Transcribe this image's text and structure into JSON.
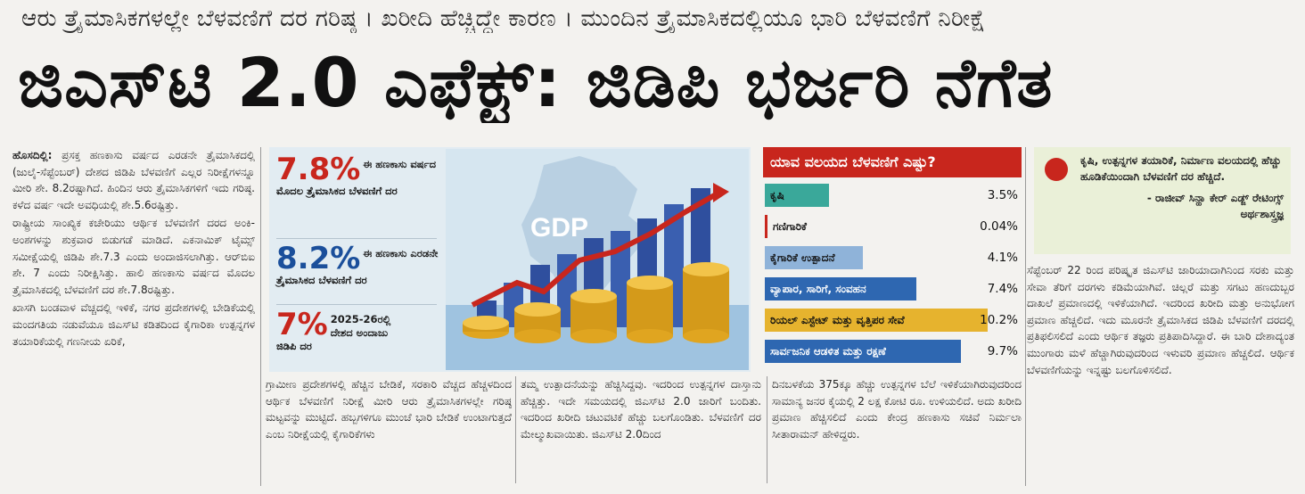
{
  "kicker": "ಆರು ತ್ರೈಮಾಸಿಕಗಳಲ್ಲೇ ಬೆಳವಣಿಗೆ ದರ ಗರಿಷ್ಠ । ಖರೀದಿ ಹೆಚ್ಚಿದ್ದೇ ಕಾರಣ । ಮುಂದಿನ ತ್ರೈಮಾಸಿಕದಲ್ಲಿಯೂ ಭಾರಿ ಬೆಳವಣಿಗೆ ನಿರೀಕ್ಷೆ",
  "headline": "ಜಿಎಸ್‌ಟಿ 2.0 ಎಫೆಕ್ಟ್: ಜಿಡಿಪಿ ಭರ್ಜರಿ ನೆಗೆತ",
  "col1": {
    "dateline": "ಹೊಸದಿಲ್ಲಿ:",
    "p1": "ಪ್ರಸಕ್ತ ಹಣಕಾಸು ವರ್ಷದ ಎರಡನೇ ತ್ರೈಮಾಸಿಕದಲ್ಲಿ (ಜುಲೈ-ಸೆಪ್ಟೆಂಬರ್) ದೇಶದ ಜಿಡಿಪಿ ಬೆಳವಣಿಗೆ ಎಲ್ಲರ ನಿರೀಕ್ಷೆಗಳನ್ನೂ ಮೀರಿ ಶೇ. 8.2ರಷ್ಟಾಗಿದೆ. ಹಿಂದಿನ ಆರು ತ್ರೈಮಾಸಿಕಗಳಿಗೆ ಇದು ಗರಿಷ್ಠ. ಕಳೆದ ವರ್ಷ ಇದೇ ಅವಧಿಯಲ್ಲಿ ಶೇ.5.6ರಷ್ಟಿತ್ತು.",
    "p2": "ರಾಷ್ಟ್ರೀಯ ಸಾಂಖ್ಯಿಕ ಕಚೇರಿಯು ಆರ್ಥಿಕ ಬೆಳವಣಿಗೆ ದರದ ಅಂಕಿ-ಅಂಶಗಳನ್ನು ಶುಕ್ರವಾರ ಬಿಡುಗಡೆ ಮಾಡಿದೆ. ಎಕನಾಮಿಕ್ ಟೈಮ್ಸ್ ಸಮೀಕ್ಷೆಯಲ್ಲಿ ಜಿಡಿಪಿ ಶೇ.7.3 ಎಂದು ಅಂದಾಜಿಸಲಾಗಿತ್ತು. ಆರ್‌ಬಿಐ ಶೇ. 7 ಎಂದು ನಿರೀಕ್ಷಿಸಿತ್ತು. ಹಾಲಿ ಹಣಕಾಸು ವರ್ಷದ ಮೊದಲ ತ್ರೈಮಾಸಿಕದಲ್ಲಿ ಬೆಳವಣಿಗೆ ದರ ಶೇ.7.8ರಷ್ಟಿತ್ತು.",
    "p3": "ಖಾಸಗಿ ಬಂಡವಾಳ ವೆಚ್ಚದಲ್ಲಿ ಇಳಿಕೆ, ನಗರ ಪ್ರದೇಶಗಳಲ್ಲಿ ಬೇಡಿಕೆಯಲ್ಲಿ ಮಂದಗತಿಯ ನಡುವೆಯೂ ಜಿಎಸ್‌ಟಿ ಕಡಿತದಿಂದ ಕೈಗಾರಿಕಾ ಉತ್ಪನ್ನಗಳ ತಯಾರಿಕೆಯಲ್ಲಿ ಗಣನೀಯ ಏರಿಕೆ,"
  },
  "col2": "ಗ್ರಾಮೀಣ ಪ್ರದೇಶಗಳಲ್ಲಿ ಹೆಚ್ಚಿನ ಬೇಡಿಕೆ, ಸರಕಾರಿ ವೆಚ್ಚದ ಹೆಚ್ಚಳದಿಂದ ಆರ್ಥಿಕ ಬೆಳವಣಿಗೆ ನಿರೀಕ್ಷೆ ಮೀರಿ ಆರು ತ್ರೈಮಾಸಿಕಗಳಲ್ಲೇ ಗರಿಷ್ಠ ಮಟ್ಟವನ್ನು ಮುಟ್ಟಿದೆ. ಹಬ್ಬಗಳಿಗೂ ಮುಂಚೆ ಭಾರಿ ಬೇಡಿಕೆ ಉಂಟಾಗುತ್ತದೆ ಎಂಬ ನಿರೀಕ್ಷೆಯಲ್ಲಿ ಕೈಗಾರಿಕೆಗಳು",
  "col3": "ತಮ್ಮ ಉತ್ಪಾದನೆಯನ್ನು ಹೆಚ್ಚಿಸಿದ್ದವು. ಇದರಿಂದ ಉತ್ಪನ್ನಗಳ ದಾಸ್ತಾನು ಹೆಚ್ಚಿತ್ತು. ಇದೇ ಸಮಯದಲ್ಲಿ ಜಿಎಸ್‌ಟಿ 2.0 ಜಾರಿಗೆ ಬಂದಿತು. ಇದರಿಂದ ಖರೀದಿ ಚಟುವಟಿಕೆ ಹೆಚ್ಚು ಬಲಗೊಂಡಿತು. ಬೆಳವಣಿಗೆ ದರ ಮೇಲ್ಮುಖವಾಯಿತು. ಜಿಎಸ್‌ಟಿ 2.0ದಿಂದ",
  "col4": "ದಿನಬಳಕೆಯ 375ಕ್ಕೂ ಹೆಚ್ಚು ಉತ್ಪನ್ನಗಳ ಬೆಲೆ ಇಳಿಕೆಯಾಗಿರುವುದರಿಂದ ಸಾಮಾನ್ಯ ಜನರ ಕೈಯಲ್ಲಿ 2 ಲಕ್ಷ ಕೋಟಿ ರೂ. ಉಳಿಯಲಿದೆ. ಅದು ಖರೀದಿ ಪ್ರಮಾಣ ಹೆಚ್ಚಿಸಲಿದೆ ಎಂದು ಕೇಂದ್ರ ಹಣಕಾಸು ಸಚಿವೆ ನಿರ್ಮಲಾ ಸೀತಾರಾಮನ್ ಹೇಳಿದ್ದರು.",
  "col5": "ಸೆಪ್ಟೆಂಬರ್ 22 ರಿಂದ ಪರಿಷ್ಕೃತ ಜಿಎಸ್‌ಟಿ ಜಾರಿಯಾದಾಗಿನಿಂದ ಸರಕು ಮತ್ತು ಸೇವಾ ತೆರಿಗೆ ದರಗಳು ಕಡಿಮೆಯಾಗಿವೆ. ಚಿಲ್ಲರೆ ಮತ್ತು ಸಗಟು ಹಣದುಬ್ಬರ ದಾಖಲೆ ಪ್ರಮಾಣದಲ್ಲಿ ಇಳಿಕೆಯಾಗಿದೆ. ಇದರಿಂದ ಖರೀದಿ ಮತ್ತು ಅನುಭೋಗ ಪ್ರಮಾಣ ಹೆಚ್ಚಲಿದೆ. ಇದು ಮೂರನೇ ತ್ರೈಮಾಸಿಕದ ಜಿಡಿಪಿ ಬೆಳವಣಿಗೆ ದರದಲ್ಲಿ ಪ್ರತಿಫಲಿಸಲಿದೆ ಎಂದು ಆರ್ಥಿಕ ತಜ್ಞರು ಪ್ರತಿಪಾದಿಸಿದ್ದಾರೆ. ಈ ಬಾರಿ ದೇಶಾದ್ಯಂತ ಮುಂಗಾರು ಮಳೆ ಹೆಚ್ಚಾಗಿರುವುದರಿಂದ ಇಳುವರಿ ಪ್ರಮಾಣ ಹೆಚ್ಚಲಿದೆ. ಆರ್ಥಿಕ ಬೆಳವಣಿಗೆಯನ್ನು ಇನ್ನಷ್ಟು ಬಲಗೊಳಿಸಲಿದೆ.",
  "stats": [
    {
      "num": "7.8%",
      "side": "ಈ ಹಣಕಾಸು ವರ್ಷದ",
      "desc": "ಮೊದಲ ತ್ರೈಮಾಸಿಕದ ಬೆಳವಣಿಗೆ ದರ"
    },
    {
      "num": "8.2%",
      "side": "ಈ ಹಣಕಾಸು ಎರಡನೇ",
      "desc": "ತ್ರೈಮಾಸಿಕದ ಬೆಳವಣಿಗೆ ದರ"
    },
    {
      "num": "7%",
      "side": "2025-26ರಲ್ಲಿ ದೇಶದ ಅಂದಾಜು",
      "desc": "ಜಿಡಿಪಿ ದರ"
    }
  ],
  "gdp_label": "GDP",
  "sector": {
    "title": "ಯಾವ ವಲಯದ ಬೆಳವಣಿಗೆ ಎಷ್ಟು?",
    "rows": [
      {
        "label": "ಕೃಷಿ",
        "value": "3.5%",
        "color": "#3aa89a"
      },
      {
        "label": "ಗಣಿಗಾರಿಕೆ",
        "value": "0.04%",
        "color": "#c8261d"
      },
      {
        "label": "ಕೈಗಾರಿಕೆ ಉತ್ಪಾದನೆ",
        "value": "4.1%",
        "color": "#8fb3d9"
      },
      {
        "label": "ವ್ಯಾಪಾರ, ಸಾರಿಗೆ, ಸಂವಹನ",
        "value": "7.4%",
        "color": "#2e67b1"
      },
      {
        "label": "ರಿಯಲ್ ಎಸ್ಟೇಟ್ ಮತ್ತು ವೃತ್ತಿಪರ ಸೇವೆ",
        "value": "10.2%",
        "color": "#e6b32e"
      },
      {
        "label": "ಸಾರ್ವಜನಿಕ ಆಡಳಿತ ಮತ್ತು ರಕ್ಷಣೆ",
        "value": "9.7%",
        "color": "#2e67b1"
      }
    ]
  },
  "quote": {
    "text": "ಕೃಷಿ, ಉತ್ಪನ್ನಗಳ ತಯಾರಿಕೆ, ನಿರ್ಮಾಣ ವಲಯದಲ್ಲಿ ಹೆಚ್ಚು ಹೂಡಿಕೆಯಿಂದಾಗಿ ಬೆಳವಣಿಗೆ ದರ ಹೆಚ್ಚಿದೆ.",
    "who": "- ರಾಜೀವ್ ಸಿನ್ಹಾ ಕೇರ್ ಎಡ್ಜ್ ರೇಟಿಂಗ್ಸ್",
    "role": "ಅರ್ಥಶಾಸ್ತ್ರಜ್ಞ"
  }
}
